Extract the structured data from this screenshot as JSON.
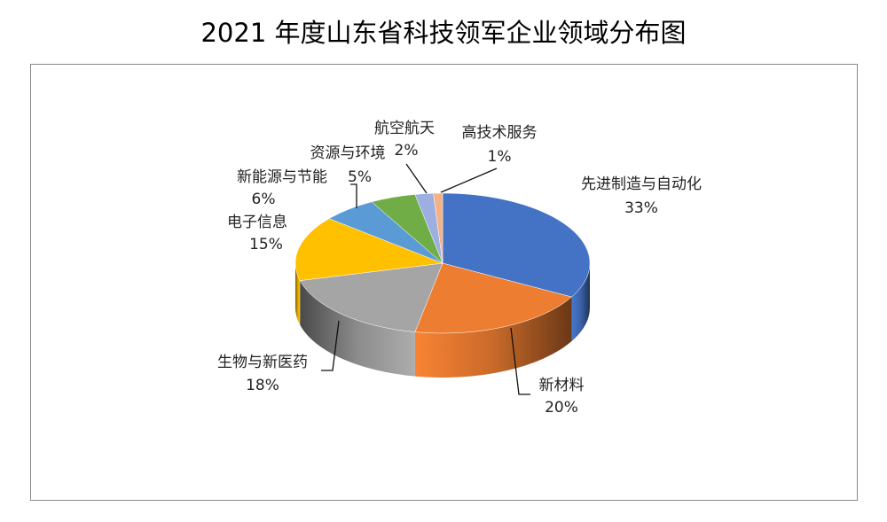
{
  "chart_data": {
    "type": "pie",
    "style": "3d",
    "title": "2021 年度山东省科技领军企业领域分布图",
    "categories": [
      "先进制造与自动化",
      "新材料",
      "生物与新医药",
      "电子信息",
      "新能源与节能",
      "资源与环境",
      "航空航天",
      "高技术服务"
    ],
    "values": [
      33,
      20,
      18,
      15,
      6,
      5,
      2,
      1
    ],
    "data_labels": [
      "33%",
      "20%",
      "18%",
      "15%",
      "6%",
      "5%",
      "2%",
      "1%"
    ],
    "colors": [
      "#4472C4",
      "#ED7D31",
      "#A5A5A5",
      "#FFC000",
      "#5B9BD5",
      "#70AD47",
      "#9DAEE0",
      "#F4B183"
    ],
    "start_angle": "12 o'clock, clockwise",
    "legend": "none"
  }
}
